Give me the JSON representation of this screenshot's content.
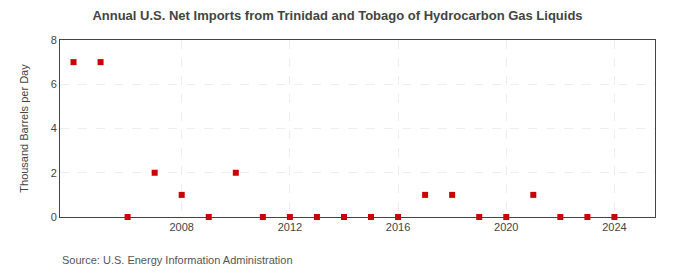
{
  "chart_data": {
    "type": "scatter",
    "title": "Annual U.S. Net Imports from Trinidad and Tobago of Hydrocarbon Gas Liquids",
    "ylabel": "Thousand Barrels per Day",
    "annotations": [
      "Source: U.S. Energy Information Administration"
    ],
    "x": [
      2004,
      2005,
      2006,
      2007,
      2008,
      2009,
      2010,
      2011,
      2012,
      2013,
      2014,
      2015,
      2016,
      2017,
      2018,
      2019,
      2020,
      2021,
      2022,
      2023,
      2024
    ],
    "values": [
      7,
      7,
      0,
      2,
      1,
      0,
      2,
      0,
      0,
      0,
      0,
      0,
      0,
      1,
      1,
      0,
      0,
      1,
      0,
      0,
      0
    ],
    "color": "#cc0000",
    "marker": "square",
    "xlim": [
      2003.5,
      2025.5
    ],
    "xticks": [
      2008,
      2012,
      2016,
      2020,
      2024
    ],
    "ylim": [
      0,
      8
    ],
    "yticks": [
      0,
      2,
      4,
      6,
      8
    ],
    "grid": true
  }
}
